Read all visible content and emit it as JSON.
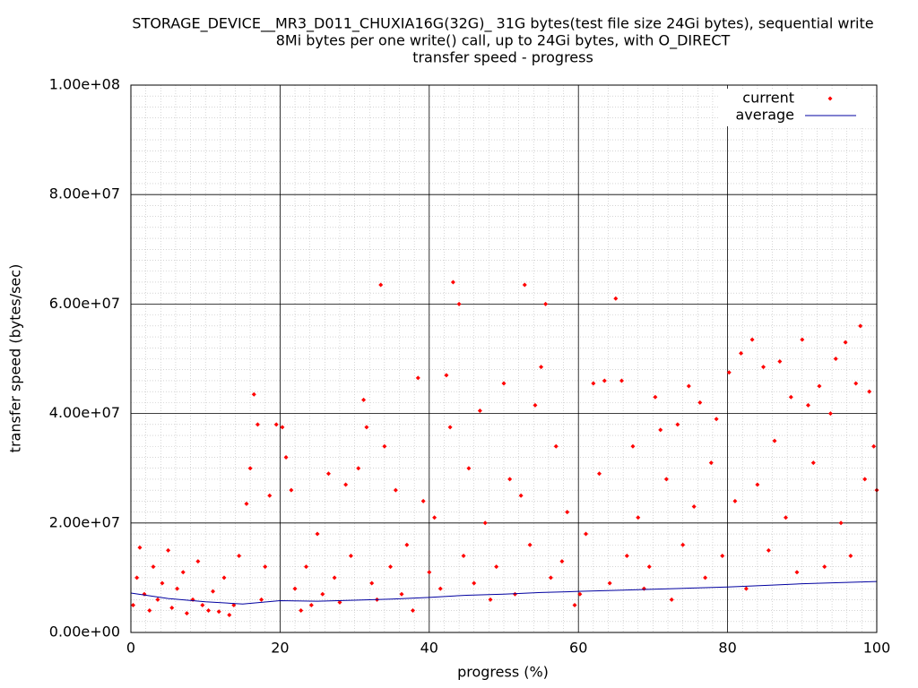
{
  "chart_data": {
    "type": "scatter",
    "title": "STORAGE_DEVICE__MR3_D011_CHUXIA16G(32G)_ 31G bytes(test file size 24Gi bytes), sequential write",
    "subtitle": "8Mi bytes per one write() call, up to 24Gi bytes, with O_DIRECT",
    "subtitle2": "transfer speed - progress",
    "xlabel": "progress (%)",
    "ylabel": "transfer speed (bytes/sec)",
    "xlim": [
      0,
      100
    ],
    "ylim": [
      0,
      100000000.0
    ],
    "xticks": [
      0,
      20,
      40,
      60,
      80,
      100
    ],
    "yticks": [
      {
        "value": 0,
        "label": "0.00e+00"
      },
      {
        "value": 20000000.0,
        "label": "2.00e+07"
      },
      {
        "value": 40000000.0,
        "label": "4.00e+07"
      },
      {
        "value": 60000000.0,
        "label": "6.00e+07"
      },
      {
        "value": 80000000.0,
        "label": "8.00e+07"
      },
      {
        "value": 100000000.0,
        "label": "1.00e+08"
      }
    ],
    "grid": true,
    "legend": "top-right",
    "series": [
      {
        "name": "current",
        "color": "#ff0000",
        "x": [
          0.3,
          0.8,
          1.2,
          1.8,
          2.5,
          3,
          3.6,
          4.2,
          5,
          5.5,
          6.2,
          7,
          7.5,
          8.3,
          9,
          9.6,
          10.4,
          11,
          11.8,
          12.5,
          13.2,
          13.8,
          14.5,
          15.5,
          16,
          16.5,
          17,
          17.5,
          18,
          18.6,
          19.5,
          20.3,
          20.8,
          21.5,
          22,
          22.8,
          23.5,
          24.2,
          25,
          25.7,
          26.5,
          27.3,
          28,
          28.8,
          29.5,
          30.5,
          31.2,
          31.6,
          32.3,
          33,
          33.5,
          34,
          34.8,
          35.5,
          36.3,
          37,
          37.8,
          38.5,
          39.2,
          40,
          40.7,
          41.5,
          42.3,
          42.8,
          43.2,
          44,
          44.6,
          45.3,
          46,
          46.8,
          47.5,
          48.2,
          49,
          50,
          50.8,
          51.5,
          52.3,
          52.8,
          53.5,
          54.2,
          55,
          55.6,
          56.3,
          57,
          57.8,
          58.5,
          59.5,
          60.2,
          61,
          62,
          62.8,
          63.5,
          64.2,
          65,
          65.8,
          66.5,
          67.3,
          68,
          68.8,
          69.5,
          70.3,
          71,
          71.8,
          72.5,
          73.3,
          74,
          74.8,
          75.5,
          76.3,
          77,
          77.8,
          78.5,
          79.3,
          80.2,
          81,
          81.8,
          82.5,
          83.3,
          84,
          84.8,
          85.5,
          86.3,
          87,
          87.8,
          88.5,
          89.3,
          90,
          90.8,
          91.5,
          92.3,
          93,
          93.8,
          94.5,
          95.2,
          95.8,
          96.5,
          97.2,
          97.8,
          98.4,
          99,
          99.6,
          100
        ],
        "values": [
          5000000.0,
          10000000.0,
          15500000.0,
          7000000.0,
          4000000.0,
          12000000.0,
          6000000.0,
          9000000.0,
          15000000.0,
          4500000.0,
          8000000.0,
          11000000.0,
          3500000.0,
          6000000.0,
          13000000.0,
          5000000.0,
          4000000.0,
          7500000.0,
          3800000.0,
          10000000.0,
          3200000.0,
          5000000.0,
          14000000.0,
          23500000.0,
          30000000.0,
          43500000.0,
          38000000.0,
          6000000.0,
          12000000.0,
          25000000.0,
          38000000.0,
          37500000.0,
          32000000.0,
          26000000.0,
          8000000.0,
          4000000.0,
          12000000.0,
          5000000.0,
          18000000.0,
          7000000.0,
          29000000.0,
          10000000.0,
          5500000.0,
          27000000.0,
          14000000.0,
          30000000.0,
          42500000.0,
          37500000.0,
          9000000.0,
          6000000.0,
          63500000.0,
          34000000.0,
          12000000.0,
          26000000.0,
          7000000.0,
          16000000.0,
          4000000.0,
          46500000.0,
          24000000.0,
          11000000.0,
          21000000.0,
          8000000.0,
          47000000.0,
          37500000.0,
          64000000.0,
          60000000.0,
          14000000.0,
          30000000.0,
          9000000.0,
          40500000.0,
          20000000.0,
          6000000.0,
          12000000.0,
          45500000.0,
          28000000.0,
          7000000.0,
          25000000.0,
          63500000.0,
          16000000.0,
          41500000.0,
          48500000.0,
          60000000.0,
          10000000.0,
          34000000.0,
          13000000.0,
          22000000.0,
          5000000.0,
          7000000.0,
          18000000.0,
          45500000.0,
          29000000.0,
          46000000.0,
          9000000.0,
          61000000.0,
          46000000.0,
          14000000.0,
          34000000.0,
          21000000.0,
          8000000.0,
          12000000.0,
          43000000.0,
          37000000.0,
          28000000.0,
          6000000.0,
          38000000.0,
          16000000.0,
          45000000.0,
          23000000.0,
          42000000.0,
          10000000.0,
          31000000.0,
          39000000.0,
          14000000.0,
          47500000.0,
          24000000.0,
          51000000.0,
          8000000.0,
          53500000.0,
          27000000.0,
          48500000.0,
          15000000.0,
          35000000.0,
          49500000.0,
          21000000.0,
          43000000.0,
          11000000.0,
          53500000.0,
          41500000.0,
          31000000.0,
          45000000.0,
          12000000.0,
          40000000.0,
          50000000.0,
          20000000.0,
          53000000.0,
          14000000.0,
          45500000.0,
          56000000.0,
          28000000.0,
          44000000.0,
          34000000.0,
          26000000.0
        ]
      },
      {
        "name": "average",
        "color": "#0000a0",
        "x": [
          0,
          5,
          10,
          15,
          20,
          25,
          30,
          35,
          40,
          45,
          50,
          55,
          60,
          65,
          70,
          75,
          80,
          85,
          90,
          95,
          100
        ],
        "values": [
          7200000.0,
          6200000.0,
          5600000.0,
          5200000.0,
          5800000.0,
          5700000.0,
          5900000.0,
          6100000.0,
          6400000.0,
          6800000.0,
          7000000.0,
          7300000.0,
          7500000.0,
          7700000.0,
          7900000.0,
          8100000.0,
          8300000.0,
          8600000.0,
          8900000.0,
          9100000.0,
          9300000.0
        ]
      }
    ]
  }
}
